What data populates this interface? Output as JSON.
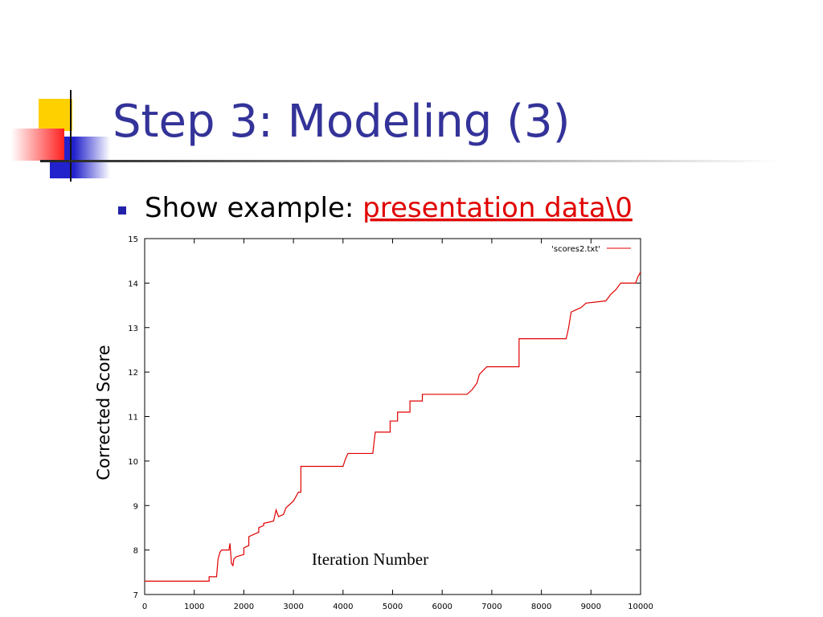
{
  "slide": {
    "title": "Step 3: Modeling (3)",
    "bullet": "Show example:",
    "link": "presentation data\\0"
  },
  "chart_data": {
    "type": "line",
    "x_label": "Iteration Number",
    "y_label": "Corrected Score",
    "xlim": [
      0,
      10000
    ],
    "ylim": [
      7,
      15
    ],
    "xticks": [
      0,
      1000,
      2000,
      3000,
      4000,
      5000,
      6000,
      7000,
      8000,
      9000,
      10000
    ],
    "yticks": [
      7,
      8,
      9,
      10,
      11,
      12,
      13,
      14,
      15
    ],
    "legend": "upper right",
    "x": [
      0,
      1300,
      1300,
      1450,
      1480,
      1520,
      1550,
      1700,
      1720,
      1750,
      1780,
      1800,
      1850,
      2000,
      2000,
      2100,
      2100,
      2300,
      2300,
      2400,
      2400,
      2600,
      2650,
      2700,
      2800,
      2850,
      2900,
      3000,
      3050,
      3100,
      3150,
      3150,
      4000,
      4050,
      4100,
      4600,
      4650,
      4950,
      4950,
      5100,
      5100,
      5350,
      5350,
      5600,
      5600,
      6500,
      6600,
      6700,
      6750,
      6900,
      7550,
      7550,
      8500,
      8550,
      8600,
      8800,
      8900,
      9300,
      9400,
      9500,
      9600,
      9900,
      9950,
      10000
    ],
    "series": [
      {
        "name": "'scores2.txt'",
        "color": "#e00000",
        "values": [
          7.3,
          7.3,
          7.4,
          7.4,
          7.8,
          7.95,
          8.0,
          8.0,
          8.15,
          7.7,
          7.65,
          7.8,
          7.85,
          7.9,
          8.05,
          8.1,
          8.3,
          8.4,
          8.5,
          8.55,
          8.6,
          8.65,
          8.9,
          8.75,
          8.8,
          8.95,
          9.0,
          9.1,
          9.2,
          9.3,
          9.3,
          9.88,
          9.88,
          10.05,
          10.17,
          10.17,
          10.65,
          10.65,
          10.9,
          10.9,
          11.1,
          11.1,
          11.35,
          11.35,
          11.5,
          11.5,
          11.6,
          11.75,
          11.95,
          12.12,
          12.12,
          12.75,
          12.75,
          13.0,
          13.35,
          13.45,
          13.55,
          13.6,
          13.75,
          13.85,
          14.0,
          14.0,
          14.15,
          14.25
        ]
      }
    ]
  }
}
